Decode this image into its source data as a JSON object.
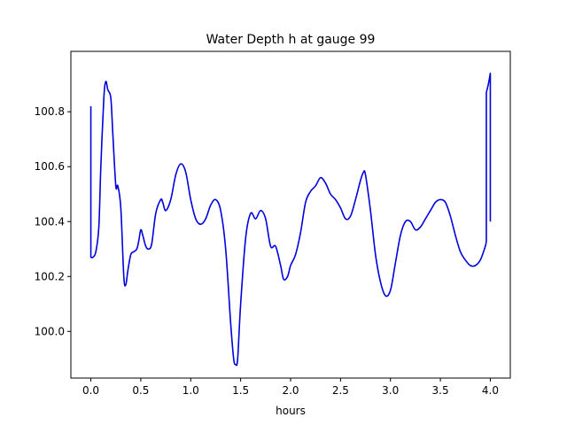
{
  "chart_data": {
    "type": "line",
    "title": "Water Depth h at gauge 99",
    "xlabel": "hours",
    "ylabel": "",
    "xlim": [
      -0.2,
      4.2
    ],
    "ylim": [
      99.83,
      101.02
    ],
    "xticks": [
      0.0,
      0.5,
      1.0,
      1.5,
      2.0,
      2.5,
      3.0,
      3.5,
      4.0
    ],
    "xtick_labels": [
      "0.0",
      "0.5",
      "1.0",
      "1.5",
      "2.0",
      "2.5",
      "3.0",
      "3.5",
      "4.0"
    ],
    "yticks": [
      100.0,
      100.2,
      100.4,
      100.6,
      100.8
    ],
    "ytick_labels": [
      "100.0",
      "100.2",
      "100.4",
      "100.6",
      "100.8"
    ],
    "grid": false,
    "line_color": "#0000dd",
    "series": [
      {
        "x": [
          0.0,
          0.0,
          0.0,
          0.02,
          0.05,
          0.08,
          0.1,
          0.13,
          0.15,
          0.17,
          0.2,
          0.22,
          0.25,
          0.27,
          0.3,
          0.33,
          0.35,
          0.37,
          0.4,
          0.43,
          0.46,
          0.48,
          0.5,
          0.52,
          0.55,
          0.58,
          0.61,
          0.65,
          0.7,
          0.72,
          0.75,
          0.8,
          0.85,
          0.9,
          0.95,
          1.0,
          1.05,
          1.1,
          1.15,
          1.2,
          1.25,
          1.3,
          1.35,
          1.4,
          1.43,
          1.45,
          1.47,
          1.5,
          1.55,
          1.6,
          1.65,
          1.7,
          1.75,
          1.8,
          1.85,
          1.9,
          1.93,
          1.97,
          2.0,
          2.05,
          2.1,
          2.15,
          2.2,
          2.25,
          2.3,
          2.35,
          2.4,
          2.45,
          2.5,
          2.55,
          2.6,
          2.65,
          2.7,
          2.73,
          2.75,
          2.8,
          2.85,
          2.9,
          2.95,
          3.0,
          3.05,
          3.1,
          3.15,
          3.2,
          3.25,
          3.3,
          3.35,
          3.4,
          3.45,
          3.5,
          3.55,
          3.6,
          3.65,
          3.7,
          3.75,
          3.8,
          3.85,
          3.9,
          3.95,
          3.96,
          3.96,
          3.98,
          4.0,
          4.0
        ],
        "y": [
          100.82,
          100.8,
          100.27,
          100.27,
          100.29,
          100.38,
          100.6,
          100.85,
          100.91,
          100.88,
          100.85,
          100.72,
          100.53,
          100.53,
          100.45,
          100.2,
          100.17,
          100.22,
          100.28,
          100.29,
          100.3,
          100.33,
          100.37,
          100.35,
          100.31,
          100.3,
          100.32,
          100.43,
          100.48,
          100.47,
          100.44,
          100.48,
          100.57,
          100.61,
          100.58,
          100.48,
          100.41,
          100.39,
          100.41,
          100.46,
          100.48,
          100.44,
          100.3,
          100.03,
          99.9,
          99.88,
          99.9,
          100.1,
          100.34,
          100.43,
          100.41,
          100.44,
          100.41,
          100.31,
          100.31,
          100.24,
          100.19,
          100.2,
          100.24,
          100.28,
          100.36,
          100.47,
          100.51,
          100.53,
          100.56,
          100.54,
          100.5,
          100.48,
          100.45,
          100.41,
          100.42,
          100.48,
          100.55,
          100.58,
          100.57,
          100.44,
          100.28,
          100.18,
          100.13,
          100.15,
          100.25,
          100.35,
          100.4,
          100.4,
          100.37,
          100.38,
          100.41,
          100.44,
          100.47,
          100.48,
          100.47,
          100.42,
          100.35,
          100.29,
          100.26,
          100.24,
          100.24,
          100.26,
          100.31,
          100.33,
          100.87,
          100.9,
          100.94,
          100.4
        ]
      }
    ]
  }
}
